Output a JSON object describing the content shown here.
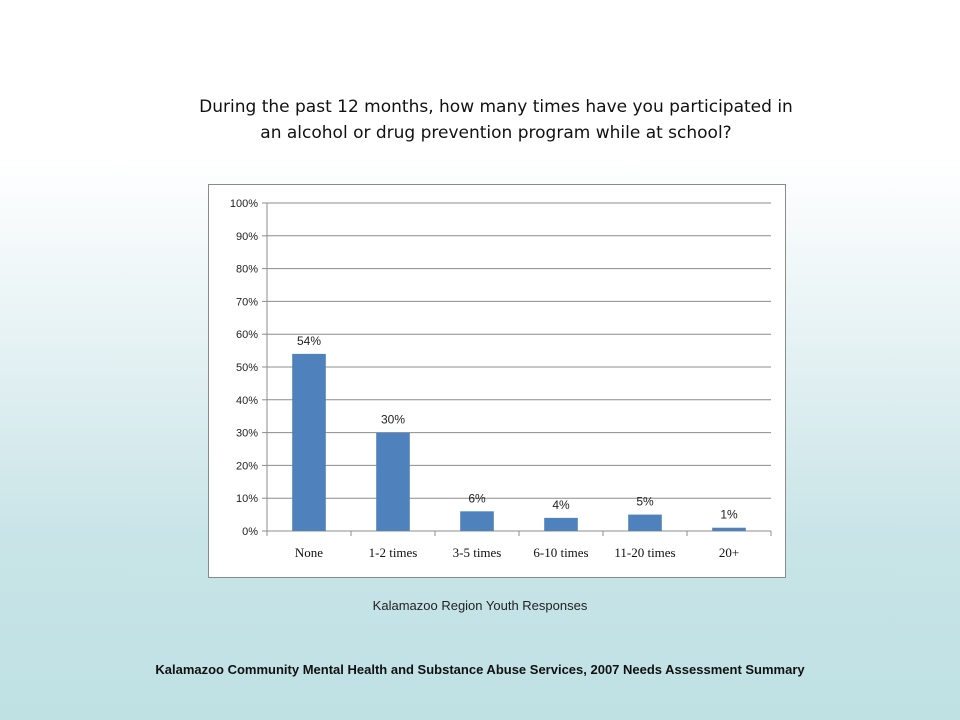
{
  "question": {
    "line1": "During the past 12 months, how many times have you participated in",
    "line2": "an alcohol or drug prevention program while at school?"
  },
  "chart_data": {
    "type": "bar",
    "categories": [
      "None",
      "1-2 times",
      "3-5 times",
      "6-10 times",
      "11-20 times",
      "20+"
    ],
    "values": [
      54,
      30,
      6,
      4,
      5,
      1
    ],
    "data_labels": [
      "54%",
      "30%",
      "6%",
      "4%",
      "5%",
      "1%"
    ],
    "y_ticks": [
      "0%",
      "10%",
      "20%",
      "30%",
      "40%",
      "50%",
      "60%",
      "70%",
      "80%",
      "90%",
      "100%"
    ],
    "ylim": [
      0,
      100
    ],
    "grid": true,
    "legend": "none",
    "bar_color": "#4f81bd"
  },
  "caption": "Kalamazoo Region Youth Responses",
  "footer": "Kalamazoo Community Mental Health and Substance Abuse Services, 2007 Needs Assessment Summary"
}
